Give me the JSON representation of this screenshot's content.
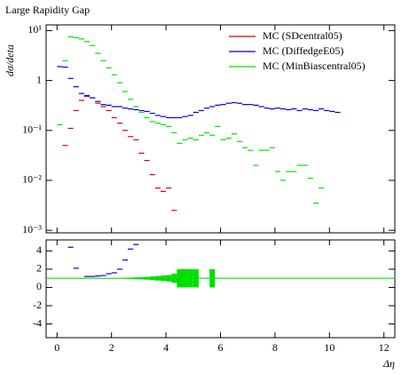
{
  "chart_data": [
    {
      "type": "scatter",
      "title": "Large Rapidity Gap",
      "ylabel": "dσ/deta",
      "log_y": true,
      "legend": "upper right",
      "xlim": [
        -0.4,
        12.4
      ],
      "xticks": [
        0,
        2,
        4,
        6,
        8,
        10,
        12
      ],
      "ylim": [
        0.00089,
        13
      ],
      "yticks": [
        {
          "value": 0.001,
          "label": "10⁻³"
        },
        {
          "value": 0.01,
          "label": "10⁻²"
        },
        {
          "value": 0.1,
          "label": "10⁻¹"
        },
        1,
        {
          "value": 10,
          "label": "10¹"
        }
      ],
      "series": [
        {
          "name": "MC (SDcentral05)",
          "color": "#e00000",
          "x": [
            0.3,
            0.5,
            0.7,
            0.9,
            1.1,
            1.3,
            1.5,
            1.7,
            1.9,
            2.1,
            2.3,
            2.5,
            2.7,
            2.9,
            3.1,
            3.3,
            3.5,
            3.7,
            3.9,
            4.1,
            4.3
          ],
          "values": [
            0.05,
            0.11,
            0.25,
            0.4,
            0.48,
            0.45,
            0.35,
            0.3,
            0.25,
            0.18,
            0.14,
            0.1,
            0.075,
            0.065,
            0.035,
            0.025,
            0.013,
            0.007,
            0.006,
            0.007,
            0.0025
          ]
        },
        {
          "name": "MC (DiffedgeE05)",
          "color": "#0000e0",
          "x": [
            0.1,
            0.3,
            0.5,
            0.7,
            0.9,
            1.1,
            1.3,
            1.5,
            1.7,
            1.9,
            2.1,
            2.3,
            2.5,
            2.7,
            2.9,
            3.1,
            3.3,
            3.5,
            3.7,
            3.9,
            4.1,
            4.3,
            4.5,
            4.7,
            4.9,
            5.1,
            5.3,
            5.5,
            5.7,
            5.9,
            6.1,
            6.3,
            6.5,
            6.7,
            6.9,
            7.1,
            7.3,
            7.5,
            7.7,
            7.9,
            8.1,
            8.3,
            8.5,
            8.7,
            8.9,
            9.1,
            9.3,
            9.5,
            9.7,
            9.9,
            10.1,
            10.3
          ],
          "values": [
            1.9,
            1.85,
            1.1,
            0.75,
            0.55,
            0.5,
            0.45,
            0.38,
            0.33,
            0.32,
            0.3,
            0.3,
            0.28,
            0.27,
            0.26,
            0.25,
            0.24,
            0.22,
            0.2,
            0.19,
            0.18,
            0.18,
            0.18,
            0.19,
            0.2,
            0.23,
            0.25,
            0.28,
            0.3,
            0.32,
            0.33,
            0.35,
            0.36,
            0.35,
            0.33,
            0.33,
            0.32,
            0.3,
            0.28,
            0.27,
            0.28,
            0.27,
            0.26,
            0.27,
            0.25,
            0.27,
            0.26,
            0.25,
            0.27,
            0.25,
            0.24,
            0.23
          ]
        },
        {
          "name": "MC (MinBiascentral05)",
          "color": "#00e000",
          "x": [
            0.1,
            0.3,
            0.5,
            0.7,
            0.9,
            1.1,
            1.3,
            1.5,
            1.7,
            1.9,
            2.1,
            2.3,
            2.5,
            2.7,
            2.9,
            3.1,
            3.3,
            3.5,
            3.7,
            3.9,
            4.1,
            4.3,
            4.5,
            4.7,
            4.9,
            5.1,
            5.3,
            5.5,
            5.7,
            5.9,
            6.1,
            6.3,
            6.5,
            6.7,
            6.9,
            7.1,
            7.3,
            7.5,
            7.7,
            7.9,
            8.1,
            8.3,
            8.5,
            8.7,
            8.9,
            9.1,
            9.3,
            9.5,
            9.7
          ],
          "values": [
            0.13,
            2.5,
            7.5,
            7.2,
            6.8,
            6.0,
            5.0,
            3.5,
            2.5,
            1.8,
            1.3,
            0.9,
            0.6,
            0.42,
            0.3,
            0.23,
            0.18,
            0.15,
            0.14,
            0.13,
            0.12,
            0.09,
            0.055,
            0.065,
            0.07,
            0.065,
            0.08,
            0.09,
            0.08,
            0.12,
            0.065,
            0.07,
            0.085,
            0.06,
            0.045,
            0.04,
            0.02,
            0.04,
            0.04,
            0.045,
            0.015,
            0.01,
            0.015,
            0.015,
            0.02,
            0.02,
            0.011,
            0.0035,
            0.007
          ]
        }
      ]
    },
    {
      "type": "ratio",
      "xlabel": "Δη",
      "reference": 1,
      "reference_color": "#00e000",
      "xlim": [
        -0.4,
        12.4
      ],
      "xticks": [
        0,
        2,
        4,
        6,
        8,
        10,
        12
      ],
      "ylim": [
        -5.5,
        5.2
      ],
      "yticks": [
        -4,
        -2,
        0,
        2,
        4
      ],
      "band_x": [
        2.5,
        2.7,
        2.9,
        3.1,
        3.3,
        3.5,
        3.7,
        3.9,
        4.1,
        4.3,
        4.5,
        4.7,
        4.9,
        5.1,
        5.7
      ],
      "band_errors": [
        0.05,
        0.07,
        0.1,
        0.12,
        0.15,
        0.2,
        0.25,
        0.3,
        0.35,
        0.5,
        1.0,
        1.0,
        1.0,
        1.0,
        1.0
      ],
      "series": [
        {
          "name": "MC (DiffedgeE05)",
          "color": "#0000e0",
          "x": [
            0.5,
            0.7,
            1.1,
            1.3,
            1.5,
            1.7,
            1.9,
            2.1,
            2.3,
            2.5,
            2.7,
            2.9
          ],
          "values": [
            4.4,
            2.1,
            1.2,
            1.2,
            1.25,
            1.3,
            1.5,
            1.6,
            2.0,
            3.0,
            4.2,
            4.7
          ]
        }
      ]
    }
  ]
}
